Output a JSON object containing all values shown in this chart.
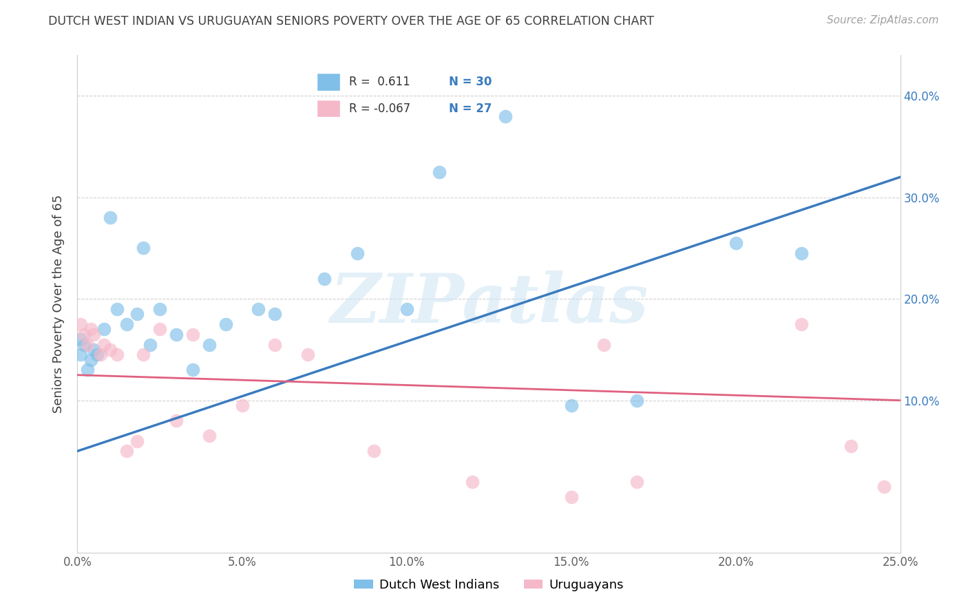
{
  "title": "DUTCH WEST INDIAN VS URUGUAYAN SENIORS POVERTY OVER THE AGE OF 65 CORRELATION CHART",
  "source": "Source: ZipAtlas.com",
  "ylabel": "Seniors Poverty Over the Age of 65",
  "xlim": [
    0.0,
    0.25
  ],
  "ylim": [
    -0.05,
    0.44
  ],
  "xticks": [
    0.0,
    0.05,
    0.1,
    0.15,
    0.2,
    0.25
  ],
  "yticks": [
    0.1,
    0.2,
    0.3,
    0.4
  ],
  "blue_color": "#7fbfe8",
  "pink_color": "#f5b8c8",
  "blue_line_color": "#3a7bbf",
  "pink_line_color": "#e06080",
  "r_blue": 0.611,
  "n_blue": 30,
  "r_pink": -0.067,
  "n_pink": 27,
  "legend_label_blue": "Dutch West Indians",
  "legend_label_pink": "Uruguayans",
  "watermark": "ZIPatlas",
  "blue_scatter_x": [
    0.001,
    0.001,
    0.002,
    0.003,
    0.004,
    0.005,
    0.006,
    0.008,
    0.01,
    0.012,
    0.015,
    0.018,
    0.02,
    0.022,
    0.025,
    0.03,
    0.035,
    0.04,
    0.045,
    0.055,
    0.06,
    0.075,
    0.085,
    0.1,
    0.11,
    0.13,
    0.15,
    0.17,
    0.2,
    0.22
  ],
  "blue_scatter_y": [
    0.145,
    0.16,
    0.155,
    0.13,
    0.14,
    0.15,
    0.145,
    0.17,
    0.28,
    0.19,
    0.175,
    0.185,
    0.25,
    0.155,
    0.19,
    0.165,
    0.13,
    0.155,
    0.175,
    0.19,
    0.185,
    0.22,
    0.245,
    0.19,
    0.325,
    0.38,
    0.095,
    0.1,
    0.255,
    0.245
  ],
  "pink_scatter_x": [
    0.001,
    0.002,
    0.003,
    0.004,
    0.005,
    0.007,
    0.008,
    0.01,
    0.012,
    0.015,
    0.018,
    0.02,
    0.025,
    0.03,
    0.035,
    0.04,
    0.05,
    0.06,
    0.07,
    0.09,
    0.12,
    0.15,
    0.16,
    0.17,
    0.22,
    0.235,
    0.245
  ],
  "pink_scatter_y": [
    0.175,
    0.165,
    0.155,
    0.17,
    0.165,
    0.145,
    0.155,
    0.15,
    0.145,
    0.05,
    0.06,
    0.145,
    0.17,
    0.08,
    0.165,
    0.065,
    0.095,
    0.155,
    0.145,
    0.05,
    0.02,
    0.005,
    0.155,
    0.02,
    0.175,
    0.055,
    0.015
  ],
  "grid_color": "#d0d0d0",
  "background_color": "#ffffff",
  "title_color": "#404040",
  "source_color": "#a0a0a0",
  "axis_label_color": "#404040",
  "tick_label_color": "#606060",
  "blue_trend_x": [
    0.0,
    0.25
  ],
  "blue_trend_y": [
    0.05,
    0.32
  ],
  "pink_trend_x": [
    0.0,
    0.25
  ],
  "pink_trend_y": [
    0.125,
    0.1
  ]
}
